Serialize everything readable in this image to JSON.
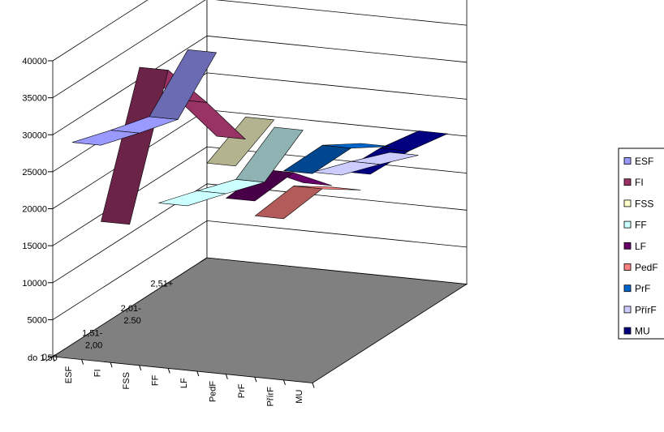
{
  "chart_data": {
    "type": "3d-line",
    "title": "",
    "xlabel": "",
    "ylabel": "",
    "ylim": [
      0,
      40000
    ],
    "y_ticks": [
      "0",
      "5000",
      "10000",
      "15000",
      "20000",
      "25000",
      "30000",
      "35000",
      "40000"
    ],
    "categories": [
      "do 1,50",
      "1,51-\n2,00",
      "2,01-\n2.50",
      "2,51+"
    ],
    "grid": true,
    "legend_position": "right",
    "series": [
      {
        "name": "ESF",
        "color": "#9999ff",
        "values": [
          27300,
          25600,
          24100,
          29800
        ]
      },
      {
        "name": "FI",
        "color": "#993366",
        "values": [
          17000,
          34500,
          26800,
          18500
        ]
      },
      {
        "name": "FSS",
        "color": "#ffffcc",
        "values": [
          null,
          null,
          18600,
          21500
        ]
      },
      {
        "name": "FF",
        "color": "#ccffff",
        "values": [
          20300,
          18600,
          16800,
          20500
        ]
      },
      {
        "name": "LF",
        "color": "#660066",
        "values": [
          null,
          18000,
          18500,
          13400
        ]
      },
      {
        "name": "PedF",
        "color": "#ff8080",
        "values": [
          null,
          16000,
          16700,
          13200
        ]
      },
      {
        "name": "PrF",
        "color": "#0066cc",
        "values": [
          null,
          22500,
          22600,
          19500
        ]
      },
      {
        "name": "PřírF",
        "color": "#ccccff",
        "values": [
          null,
          22700,
          20800,
          18700
        ]
      },
      {
        "name": "MU",
        "color": "#000080",
        "values": [
          null,
          23200,
          23000,
          22000
        ]
      }
    ]
  }
}
